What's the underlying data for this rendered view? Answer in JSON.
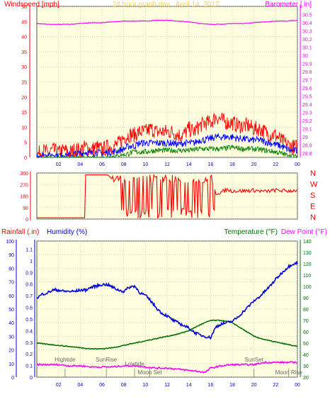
{
  "colors": {
    "background": "#ffffe0",
    "grid": "#b8b8b8",
    "wind_axis": "#ff0000",
    "baro": "#ff00ff",
    "title": "#f0d060",
    "rain_axis": "#0000c8",
    "humidity": "#0000dd",
    "temperature": "#007000",
    "dewpoint": "#ff00ff",
    "direction": "#ff0000",
    "wind_avg": "#0000ff",
    "wind_low": "#008000"
  },
  "chart_data": [
    {
      "type": "line",
      "title": "24 hour graph day : April 14, 2017",
      "ylabel_left": "Windspeed [mph]",
      "ylabel_right": "Barometer [.in]",
      "x_ticks": [
        "02",
        "04",
        "06",
        "08",
        "10",
        "12",
        "14",
        "16",
        "18",
        "20",
        "22",
        "00"
      ],
      "xlim": [
        0,
        24
      ],
      "ylim_left": [
        0,
        50
      ],
      "yticks_left": [
        "0",
        "5",
        "10",
        "15",
        "20",
        "25",
        "30",
        "35",
        "40",
        "45",
        "50"
      ],
      "ylim_right": [
        28.75,
        30.6
      ],
      "yticks_right": [
        "28.8",
        "28.9",
        "29",
        "29.1",
        "29.2",
        "29.3",
        "29.4",
        "29.5",
        "29.6",
        "29.7",
        "29.8",
        "29.9",
        "30",
        "30.1",
        "30.2",
        "30.3",
        "30.4",
        "30.5"
      ],
      "series": [
        {
          "name": "Windspeed gust",
          "x": [
            0,
            0.5,
            1,
            1.5,
            2,
            2.5,
            3,
            3.5,
            4,
            4.5,
            5,
            5.5,
            6,
            6.5,
            7,
            7.5,
            8,
            8.5,
            9,
            9.5,
            10,
            10.5,
            11,
            11.5,
            12,
            12.5,
            13,
            13.5,
            14,
            14.5,
            15,
            15.5,
            16,
            16.5,
            17,
            17.5,
            18,
            18.5,
            19,
            19.5,
            20,
            20.5,
            21,
            21.5,
            22,
            22.5,
            23,
            23.5,
            24
          ],
          "values": [
            1,
            3,
            2,
            3,
            2,
            3,
            2,
            3,
            3,
            4,
            3,
            4,
            3,
            4,
            4,
            5,
            7,
            8,
            8,
            9,
            9,
            10,
            9,
            9,
            9,
            9,
            8,
            8,
            10,
            9,
            11,
            12,
            12,
            14,
            13,
            12,
            12,
            11,
            11,
            11,
            10,
            10,
            9,
            8,
            8,
            6,
            5,
            4,
            4
          ]
        },
        {
          "name": "Windspeed average",
          "x": [
            0,
            0.5,
            1,
            1.5,
            2,
            2.5,
            3,
            3.5,
            4,
            4.5,
            5,
            5.5,
            6,
            6.5,
            7,
            7.5,
            8,
            8.5,
            9,
            9.5,
            10,
            10.5,
            11,
            11.5,
            12,
            12.5,
            13,
            13.5,
            14,
            14.5,
            15,
            15.5,
            16,
            16.5,
            17,
            17.5,
            18,
            18.5,
            19,
            19.5,
            20,
            20.5,
            21,
            21.5,
            22,
            22.5,
            23,
            23.5,
            24
          ],
          "values": [
            0.5,
            1,
            1,
            1,
            1,
            1,
            1,
            1.5,
            1.5,
            2,
            1.5,
            2,
            1.5,
            2,
            2,
            2.5,
            3,
            4,
            4,
            5,
            5,
            5,
            5,
            5,
            5,
            5,
            4.5,
            5,
            5,
            5,
            6,
            6,
            6.5,
            7,
            7,
            7,
            7,
            6.5,
            6.5,
            6,
            6,
            6,
            5.5,
            5,
            4.5,
            4,
            3,
            2.5,
            2.5
          ]
        },
        {
          "name": "Windspeed low",
          "x": [
            0,
            2,
            4,
            6,
            8,
            9,
            10,
            11,
            12,
            13,
            14,
            15,
            16,
            17,
            18,
            19,
            20,
            21,
            22,
            23,
            24
          ],
          "values": [
            0,
            0,
            0,
            0,
            1,
            2,
            2,
            2.5,
            2.5,
            2.5,
            2.5,
            3,
            3,
            3,
            3.5,
            3,
            3,
            2.5,
            2,
            1,
            0.5
          ]
        },
        {
          "name": "Barometer",
          "axis": "right",
          "x": [
            0,
            1,
            2,
            3,
            4,
            5,
            6,
            7,
            8,
            9,
            10,
            11,
            12,
            13,
            14,
            15,
            16,
            17,
            18,
            19,
            20,
            21,
            22,
            23,
            24
          ],
          "values": [
            30.39,
            30.38,
            30.38,
            30.38,
            30.39,
            30.4,
            30.4,
            30.41,
            30.42,
            30.42,
            30.42,
            30.43,
            30.43,
            30.42,
            30.41,
            30.39,
            30.38,
            30.38,
            30.39,
            30.39,
            30.4,
            30.41,
            30.42,
            30.42,
            30.43
          ]
        }
      ]
    },
    {
      "type": "line",
      "xlim": [
        0,
        24
      ],
      "ylim": [
        0,
        360
      ],
      "yticks_left": [
        "0",
        "90",
        "180",
        "270",
        "360"
      ],
      "direction_labels": [
        "N",
        "W",
        "S",
        "E",
        "N"
      ],
      "series": [
        {
          "name": "Wind direction",
          "x": [
            0,
            4.4,
            4.5,
            6.5,
            6.6,
            7,
            7.5,
            8,
            8.5,
            9,
            9.5,
            10,
            10.5,
            11,
            11.5,
            12,
            12.5,
            13,
            13.5,
            14,
            14.5,
            15,
            15.5,
            16,
            16.5,
            17,
            17.5,
            18,
            19,
            20,
            21,
            22,
            23,
            24
          ],
          "values": [
            10,
            10,
            345,
            345,
            20,
            330,
            10,
            320,
            60,
            300,
            40,
            310,
            50,
            290,
            80,
            300,
            40,
            320,
            90,
            330,
            60,
            300,
            120,
            330,
            200,
            210,
            230,
            220,
            220,
            225,
            215,
            225,
            220,
            225
          ]
        }
      ]
    },
    {
      "type": "line",
      "ylabel_rain": "Rainfall (.in)",
      "ylabel_humidity": "Humidity (%)",
      "ylabel_temp": "Temperature (°F)",
      "ylabel_dew": "Dew Point (°F)",
      "xlim": [
        0,
        24
      ],
      "x_ticks": [
        "02",
        "04",
        "06",
        "08",
        "10",
        "12",
        "14",
        "16",
        "18",
        "20",
        "22",
        "00"
      ],
      "yticks_rain": [
        "0",
        "0.1",
        "0.2",
        "0.3",
        "0.4",
        "0.5",
        "0.6",
        "0.7",
        "0.8",
        "0.9",
        "1",
        "1.1"
      ],
      "ylim_humidity": [
        0,
        100
      ],
      "yticks_humidity": [
        "0",
        "10",
        "20",
        "30",
        "40",
        "50",
        "60",
        "70",
        "80",
        "90",
        "100"
      ],
      "ylim_temp": [
        20,
        140
      ],
      "yticks_temp": [
        "20",
        "30",
        "40",
        "50",
        "60",
        "70",
        "80",
        "90",
        "100",
        "110",
        "120",
        "130",
        "140"
      ],
      "annotations": [
        {
          "text": "Hightide",
          "x": 2.6,
          "row": "top"
        },
        {
          "text": "SunRise",
          "x": 6.4,
          "row": "top"
        },
        {
          "text": "Lowtide",
          "x": 9.0,
          "row": "mid"
        },
        {
          "text": "Moon Set",
          "x": 10.4,
          "row": "bottom"
        },
        {
          "text": "SunSet",
          "x": 20.0,
          "row": "top"
        },
        {
          "text": "Moon Rise",
          "x": 23.2,
          "row": "bottom"
        }
      ],
      "series": [
        {
          "name": "Humidity",
          "axis": "humidity",
          "x": [
            0,
            0.5,
            1,
            1.5,
            2,
            2.5,
            3,
            3.5,
            4,
            4.5,
            5,
            5.5,
            6,
            6.5,
            7,
            7.5,
            8,
            8.5,
            9,
            9.5,
            10,
            10.5,
            11,
            11.5,
            12,
            12.5,
            13,
            13.5,
            14,
            14.5,
            15,
            15.5,
            16,
            16.5,
            17,
            17.5,
            18,
            18.5,
            19,
            19.5,
            20,
            20.5,
            21,
            21.5,
            22,
            22.5,
            23,
            23.5,
            24
          ],
          "values": [
            58,
            61,
            62,
            64,
            64,
            63,
            63,
            63,
            64,
            64,
            66,
            67,
            68,
            68,
            66,
            64,
            63,
            66,
            67,
            62,
            60,
            56,
            51,
            47,
            45,
            42,
            40,
            38,
            36,
            33,
            31,
            30,
            29,
            37,
            39,
            40,
            41,
            44,
            48,
            52,
            56,
            59,
            63,
            67,
            72,
            76,
            80,
            83,
            84
          ]
        },
        {
          "name": "Temperature",
          "axis": "temp",
          "x": [
            0,
            1,
            2,
            3,
            4,
            5,
            6,
            7,
            8,
            9,
            10,
            11,
            12,
            13,
            14,
            15,
            16,
            17,
            18,
            19,
            20,
            21,
            22,
            23,
            24
          ],
          "values": [
            50,
            49,
            48,
            47,
            46,
            45,
            45,
            46,
            48,
            50,
            52,
            54,
            56,
            58,
            61,
            66,
            70,
            70,
            68,
            62,
            56,
            53,
            51,
            49,
            47
          ]
        },
        {
          "name": "Dew Point",
          "axis": "temp",
          "x": [
            0,
            1,
            2,
            3,
            4,
            5,
            6,
            7,
            8,
            9,
            10,
            11,
            12,
            13,
            14,
            15,
            15.5,
            16,
            17,
            18,
            19,
            20,
            21,
            22,
            23,
            24
          ],
          "values": [
            31,
            31,
            31,
            30,
            30,
            29,
            29,
            29,
            30,
            30,
            29,
            28,
            28,
            27,
            26,
            25,
            24,
            28,
            30,
            31,
            31,
            31,
            33,
            33,
            33,
            33
          ]
        }
      ]
    }
  ]
}
